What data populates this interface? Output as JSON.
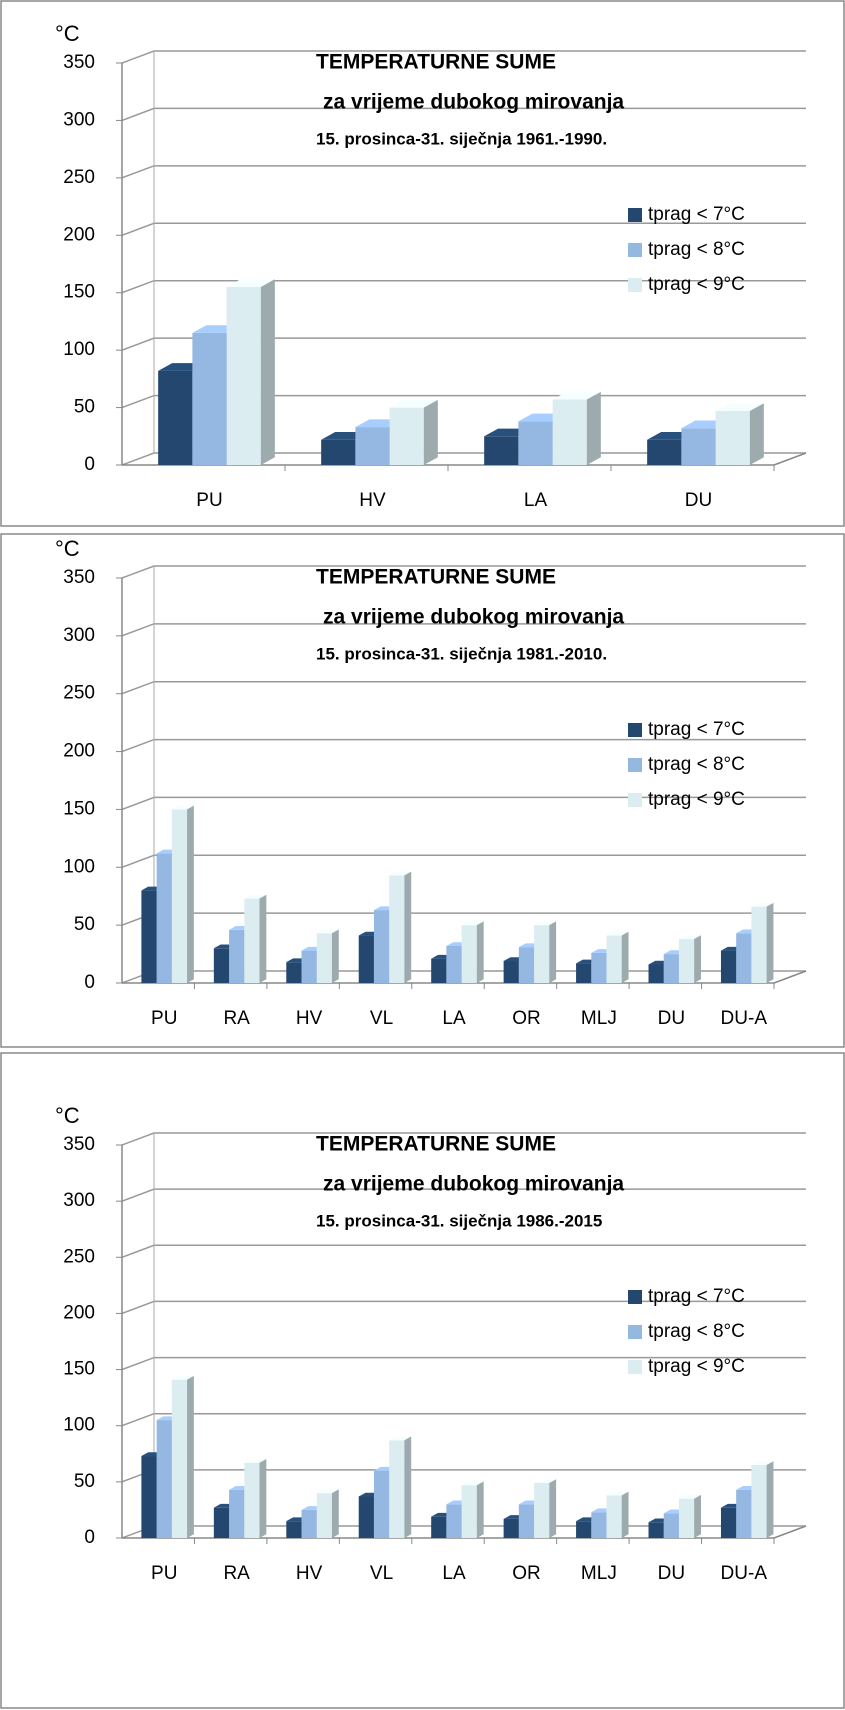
{
  "chart_data": [
    {
      "type": "bar",
      "title": "TEMPERATURNE SUME",
      "subtitle": "za vrijeme dubokog mirovanja",
      "period": "15. prosinca-31. siječnja 1961.-1990.",
      "ylabel": "°C",
      "categories": [
        "PU",
        "HV",
        "LA",
        "DU"
      ],
      "series": [
        {
          "name": "tprag < 7°C",
          "color": "#24476f",
          "values": [
            82,
            22,
            25,
            22
          ]
        },
        {
          "name": "tprag < 8°C",
          "color": "#95b8e3",
          "values": [
            115,
            33,
            38,
            32
          ]
        },
        {
          "name": "tprag < 9°C",
          "color": "#dcedf2",
          "values": [
            155,
            50,
            57,
            47
          ]
        }
      ],
      "ylim": [
        0,
        350
      ],
      "yticks": [
        0,
        50,
        100,
        150,
        200,
        250,
        300,
        350
      ],
      "grid": true,
      "legend": "right"
    },
    {
      "type": "bar",
      "title": "TEMPERATURNE SUME",
      "subtitle": "za vrijeme dubokog mirovanja",
      "period": "15. prosinca-31. siječnja 1981.-2010.",
      "ylabel": "°C",
      "categories": [
        "PU",
        "RA",
        "HV",
        "VL",
        "LA",
        "OR",
        "MLJ",
        "DU",
        "DU-A"
      ],
      "series": [
        {
          "name": "tprag < 7°C",
          "color": "#24476f",
          "values": [
            80,
            30,
            18,
            41,
            21,
            19,
            17,
            16,
            28
          ]
        },
        {
          "name": "tprag < 8°C",
          "color": "#95b8e3",
          "values": [
            112,
            46,
            28,
            63,
            32,
            31,
            26,
            25,
            43
          ]
        },
        {
          "name": "tprag < 9°C",
          "color": "#dcedf2",
          "values": [
            150,
            73,
            43,
            93,
            50,
            50,
            41,
            38,
            66
          ]
        }
      ],
      "ylim": [
        0,
        350
      ],
      "yticks": [
        0,
        50,
        100,
        150,
        200,
        250,
        300,
        350
      ],
      "grid": true,
      "legend": "right"
    },
    {
      "type": "bar",
      "title": "TEMPERATURNE SUME",
      "subtitle": "za vrijeme dubokog mirovanja",
      "period": "15. prosinca-31. siječnja 1986.-2015",
      "ylabel": "°C",
      "categories": [
        "PU",
        "RA",
        "HV",
        "VL",
        "LA",
        "OR",
        "MLJ",
        "DU",
        "DU-A"
      ],
      "series": [
        {
          "name": "tprag < 7°C",
          "color": "#24476f",
          "values": [
            73,
            27,
            15,
            37,
            19,
            17,
            15,
            14,
            27
          ]
        },
        {
          "name": "tprag < 8°C",
          "color": "#95b8e3",
          "values": [
            105,
            43,
            25,
            60,
            30,
            30,
            23,
            22,
            43
          ]
        },
        {
          "name": "tprag < 9°C",
          "color": "#dcedf2",
          "values": [
            141,
            67,
            40,
            87,
            47,
            49,
            38,
            35,
            65
          ]
        }
      ],
      "ylim": [
        0,
        350
      ],
      "yticks": [
        0,
        50,
        100,
        150,
        200,
        250,
        300,
        350
      ],
      "grid": true,
      "legend": "right"
    }
  ]
}
